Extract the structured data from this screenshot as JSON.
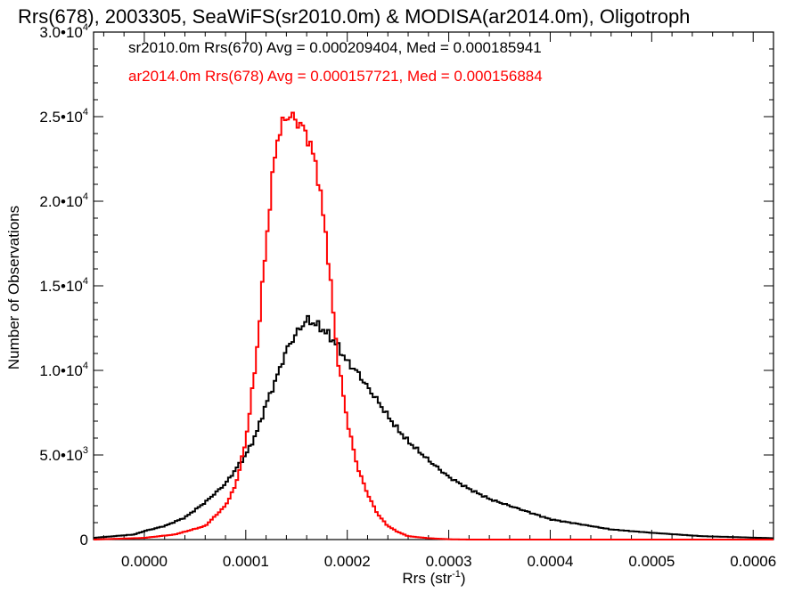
{
  "chart_data": {
    "type": "histogram",
    "title": "Rrs(678), 2003305, SeaWiFS(sr2010.0m) & MODISA(ar2014.0m), Oligotroph",
    "xlabel_main": "Rrs (str",
    "xlabel_sup": "-1",
    "xlabel_end": ")",
    "ylabel": "Number of Observations",
    "xlim": [
      -5e-05,
      0.00062
    ],
    "ylim": [
      0,
      30000
    ],
    "xticks": [
      {
        "value": 0.0,
        "label": "0.0000"
      },
      {
        "value": 0.0001,
        "label": "0.0001"
      },
      {
        "value": 0.0002,
        "label": "0.0002"
      },
      {
        "value": 0.0003,
        "label": "0.0003"
      },
      {
        "value": 0.0004,
        "label": "0.0004"
      },
      {
        "value": 0.0005,
        "label": "0.0005"
      },
      {
        "value": 0.0006,
        "label": "0.0006"
      }
    ],
    "yticks": [
      {
        "value": 0,
        "mant": "0",
        "exp": ""
      },
      {
        "value": 5000,
        "mant": "5.0•10",
        "exp": "3"
      },
      {
        "value": 10000,
        "mant": "1.0•10",
        "exp": "4"
      },
      {
        "value": 15000,
        "mant": "1.5•10",
        "exp": "4"
      },
      {
        "value": 20000,
        "mant": "2.0•10",
        "exp": "4"
      },
      {
        "value": 25000,
        "mant": "2.5•10",
        "exp": "4"
      },
      {
        "value": 30000,
        "mant": "3.0•10",
        "exp": "4"
      }
    ],
    "series": [
      {
        "name": "sr2010.0m Rrs(670) Avg = 0.000209404, Med = 0.000185941",
        "color": "#000000",
        "x": [
          -5e-05,
          -3e-05,
          -1e-05,
          0.0,
          2e-05,
          4e-05,
          6e-05,
          8e-05,
          0.0001,
          0.00011,
          0.00012,
          0.00013,
          0.00014,
          0.00015,
          0.00016,
          0.00017,
          0.00018,
          0.00019,
          0.0002,
          0.00021,
          0.00022,
          0.00023,
          0.00024,
          0.00025,
          0.00026,
          0.00028,
          0.0003,
          0.00032,
          0.00034,
          0.00036,
          0.00038,
          0.0004,
          0.00043,
          0.00046,
          0.0005,
          0.00055,
          0.00062
        ],
        "y": [
          100,
          200,
          300,
          500,
          800,
          1300,
          2200,
          3300,
          5000,
          6200,
          8000,
          9500,
          11200,
          12200,
          13000,
          12700,
          12200,
          11500,
          10500,
          9900,
          9000,
          8200,
          7300,
          6500,
          5800,
          4700,
          3700,
          3000,
          2400,
          2000,
          1600,
          1200,
          900,
          600,
          400,
          200,
          80
        ]
      },
      {
        "name": "ar2014.0m Rrs(678) Avg = 0.000157721, Med = 0.000156884",
        "color": "#ff0000",
        "x": [
          -5e-05,
          0.0,
          3e-05,
          6e-05,
          8e-05,
          9e-05,
          0.0001,
          0.00011,
          0.00012,
          0.00013,
          0.00014,
          0.00015,
          0.00016,
          0.00017,
          0.00018,
          0.00019,
          0.0002,
          0.00021,
          0.00022,
          0.00023,
          0.00024,
          0.00025,
          0.00026,
          0.00028,
          0.0003,
          0.00032,
          0.00062
        ],
        "y": [
          0,
          100,
          300,
          800,
          2000,
          3200,
          5800,
          10500,
          17500,
          23500,
          25100,
          24800,
          24000,
          22000,
          17500,
          11000,
          7000,
          4300,
          2700,
          1500,
          800,
          450,
          200,
          80,
          20,
          0,
          0
        ]
      }
    ]
  }
}
